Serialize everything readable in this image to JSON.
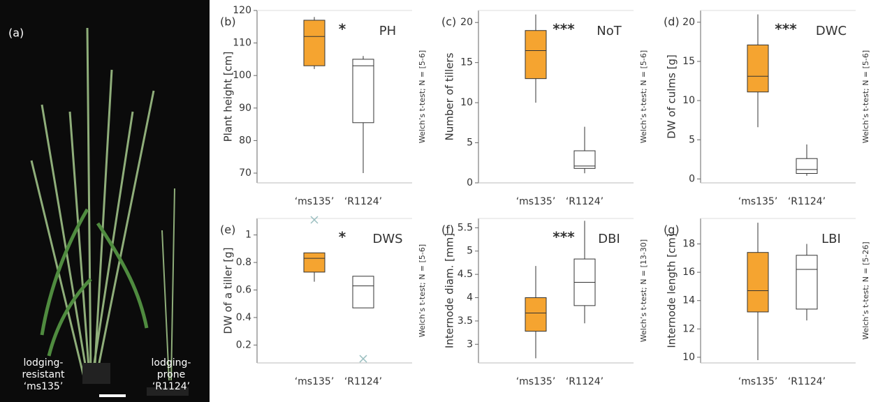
{
  "photo": {
    "label": "(a)",
    "left_caption": [
      "lodging-",
      "resistant",
      "‘ms135’"
    ],
    "right_caption": [
      "lodging-",
      "prone",
      "‘R1124’"
    ]
  },
  "chart_data": [
    {
      "type": "box",
      "panel": "(b)",
      "title": "PH",
      "significance": "*",
      "ylabel": "Plant height [cm]",
      "note": "Welch’s t-test; N = [5-6]",
      "categories": [
        "‘ms135’",
        "‘R1124’"
      ],
      "ylim": [
        67,
        120
      ],
      "yticks": [
        70,
        80,
        90,
        100,
        110,
        120
      ],
      "boxes": [
        {
          "min": 102,
          "q1": 103,
          "median": 112,
          "q3": 117,
          "max": 118,
          "color": "#f5a430",
          "outliers": []
        },
        {
          "min": 70,
          "q1": 85.5,
          "median": 103,
          "q3": 105,
          "max": 106,
          "color": "#ffffff",
          "outliers": []
        }
      ]
    },
    {
      "type": "box",
      "panel": "(c)",
      "title": "NoT",
      "significance": "***",
      "ylabel": "Number of tillers",
      "note": "Welch’s t-test; N = [5-6]",
      "categories": [
        "‘ms135’",
        "‘R1124’"
      ],
      "ylim": [
        0,
        21.5
      ],
      "yticks": [
        0,
        5,
        10,
        15,
        20
      ],
      "boxes": [
        {
          "min": 10,
          "q1": 13,
          "median": 16.5,
          "q3": 19,
          "max": 21,
          "color": "#f5a430",
          "outliers": []
        },
        {
          "min": 1.2,
          "q1": 1.8,
          "median": 2.1,
          "q3": 4,
          "max": 7,
          "color": "#ffffff",
          "outliers": []
        }
      ]
    },
    {
      "type": "box",
      "panel": "(d)",
      "title": "DWC",
      "significance": "***",
      "ylabel": "DW of culms  [g]",
      "note": "Welch’s t-test; N = [5-6]",
      "categories": [
        "‘ms135’",
        "‘R1124’"
      ],
      "ylim": [
        -0.5,
        21.5
      ],
      "yticks": [
        0,
        5,
        10,
        15,
        20
      ],
      "boxes": [
        {
          "min": 6.6,
          "q1": 11.1,
          "median": 13.1,
          "q3": 17.1,
          "max": 21,
          "color": "#f5a430",
          "outliers": []
        },
        {
          "min": 0.4,
          "q1": 0.7,
          "median": 1.2,
          "q3": 2.6,
          "max": 4.4,
          "color": "#ffffff",
          "outliers": []
        }
      ]
    },
    {
      "type": "box",
      "panel": "(e)",
      "title": "DWS",
      "significance": "*",
      "ylabel": "DW of a tiller [g]",
      "note": "Welch’s t-test; N = [5-6]",
      "categories": [
        "‘ms135’",
        "‘R1124’"
      ],
      "ylim": [
        0.07,
        1.12
      ],
      "yticks": [
        0.2,
        0.4,
        0.6,
        0.8,
        1.0
      ],
      "boxes": [
        {
          "min": 0.66,
          "q1": 0.73,
          "median": 0.83,
          "q3": 0.87,
          "max": 0.87,
          "color": "#f5a430",
          "outliers": [
            1.11
          ]
        },
        {
          "min": 0.47,
          "q1": 0.47,
          "median": 0.63,
          "q3": 0.7,
          "max": 0.7,
          "color": "#ffffff",
          "outliers": [
            0.1
          ]
        }
      ]
    },
    {
      "type": "box",
      "panel": "(f)",
      "title": "DBI",
      "significance": "***",
      "ylabel": "Internode diam. [mm]",
      "note": "Welch’s t-test; N = [13-30]",
      "categories": [
        "‘ms135’",
        "‘R1124’"
      ],
      "ylim": [
        2.6,
        5.7
      ],
      "yticks": [
        3.0,
        3.5,
        4.0,
        4.5,
        5.0,
        5.5
      ],
      "boxes": [
        {
          "min": 2.7,
          "q1": 3.28,
          "median": 3.67,
          "q3": 4.0,
          "max": 4.68,
          "color": "#f5a430",
          "outliers": []
        },
        {
          "min": 3.45,
          "q1": 3.83,
          "median": 4.33,
          "q3": 4.83,
          "max": 5.65,
          "color": "#ffffff",
          "outliers": []
        }
      ]
    },
    {
      "type": "box",
      "panel": "(g)",
      "title": "LBI",
      "significance": "",
      "ylabel": "Internode length [cm]",
      "note": "Welch’s t-test; N = [5-26]",
      "categories": [
        "‘ms135’",
        "‘R1124’"
      ],
      "ylim": [
        9.6,
        19.8
      ],
      "yticks": [
        10,
        12,
        14,
        16,
        18
      ],
      "boxes": [
        {
          "min": 9.8,
          "q1": 13.2,
          "median": 14.7,
          "q3": 17.4,
          "max": 19.5,
          "color": "#f5a430",
          "outliers": []
        },
        {
          "min": 12.6,
          "q1": 13.4,
          "median": 16.2,
          "q3": 17.2,
          "max": 18,
          "color": "#ffffff",
          "outliers": []
        }
      ]
    }
  ]
}
